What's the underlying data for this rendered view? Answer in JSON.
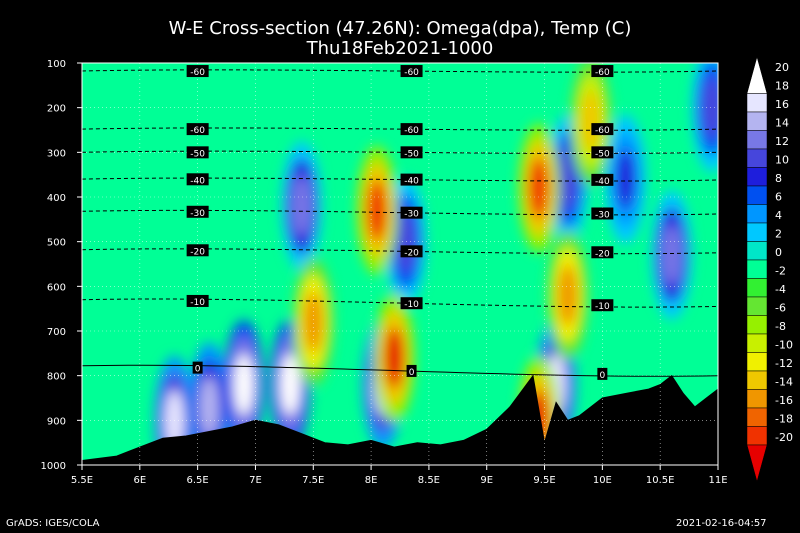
{
  "title": "W-E Cross-section (47.26N): Omega(dpa), Temp (C)",
  "subtitle": "Thu18Feb2021-1000",
  "footer_left": "GrADS: IGES/COLA",
  "footer_right": "2021-02-16-04:57",
  "chart_data": {
    "type": "heatmap",
    "x_ticks": [
      "5.5E",
      "6E",
      "6.5E",
      "7E",
      "7.5E",
      "8E",
      "8.5E",
      "9E",
      "9.5E",
      "10E",
      "10.5E",
      "11E"
    ],
    "x_values": [
      5.5,
      6.0,
      6.5,
      7.0,
      7.5,
      8.0,
      8.5,
      9.0,
      9.5,
      10.0,
      10.5,
      11.0
    ],
    "xlim": [
      5.5,
      11.0
    ],
    "y_ticks": [
      "100",
      "200",
      "300",
      "400",
      "500",
      "600",
      "700",
      "800",
      "900",
      "1000"
    ],
    "y_values": [
      100,
      200,
      300,
      400,
      500,
      600,
      700,
      800,
      900,
      1000
    ],
    "ylim": [
      100,
      1000
    ],
    "y_inverted": true,
    "grid": true,
    "colorbar": {
      "labels": [
        "20",
        "18",
        "16",
        "14",
        "12",
        "10",
        "8",
        "6",
        "4",
        "2",
        "0",
        "-2",
        "-4",
        "-6",
        "-8",
        "-10",
        "-12",
        "-14",
        "-16",
        "-18",
        "-20"
      ],
      "colors": [
        "#ffffff",
        "#e6e6ff",
        "#b4b4f0",
        "#7878e6",
        "#4646dc",
        "#1e1edc",
        "#0050f0",
        "#0096ff",
        "#00c8ff",
        "#00e6c8",
        "#00ff96",
        "#32f032",
        "#64e632",
        "#96f000",
        "#c8f000",
        "#f0f000",
        "#f0c800",
        "#f09600",
        "#f06400",
        "#f03200",
        "#e60000"
      ],
      "placement": "right"
    },
    "temperature_contours": [
      {
        "label": "-60",
        "y": [
          118,
          118
        ]
      },
      {
        "label": "-60",
        "y": [
          248,
          248
        ]
      },
      {
        "label": "-50",
        "y": [
          300,
          300
        ]
      },
      {
        "label": "-40",
        "y": [
          360,
          362
        ]
      },
      {
        "label": "-30",
        "y": [
          432,
          438
        ]
      },
      {
        "label": "-20",
        "y": [
          518,
          525
        ]
      },
      {
        "label": "-10",
        "y": [
          630,
          645
        ]
      },
      {
        "label": "0",
        "y": [
          778,
          800
        ]
      }
    ],
    "temperature_labels": [
      "-60",
      "-60",
      "-60",
      "-60",
      "-60",
      "-60",
      "-50",
      "-50",
      "-50",
      "-40",
      "-40",
      "-40",
      "-30",
      "-30",
      "-30",
      "-20",
      "-20",
      "-20",
      "-10",
      "-10",
      "-10",
      "0",
      "0",
      "0"
    ],
    "terrain": {
      "x": [
        5.5,
        5.8,
        6.0,
        6.2,
        6.4,
        6.6,
        6.8,
        7.0,
        7.2,
        7.4,
        7.6,
        7.8,
        8.0,
        8.2,
        8.4,
        8.6,
        8.8,
        9.0,
        9.2,
        9.4,
        9.5,
        9.6,
        9.7,
        9.8,
        10.0,
        10.2,
        10.4,
        10.5,
        10.6,
        10.7,
        10.8,
        10.9,
        11.0
      ],
      "pressure": [
        990,
        980,
        960,
        940,
        935,
        925,
        915,
        900,
        910,
        930,
        950,
        955,
        945,
        960,
        950,
        955,
        945,
        920,
        870,
        800,
        950,
        860,
        900,
        890,
        850,
        840,
        830,
        820,
        800,
        840,
        870,
        850,
        830
      ]
    },
    "omega_features": [
      {
        "x": 6.3,
        "p": 900,
        "v": 18
      },
      {
        "x": 6.6,
        "p": 870,
        "v": 16
      },
      {
        "x": 6.9,
        "p": 820,
        "v": 20
      },
      {
        "x": 7.3,
        "p": 820,
        "v": 20
      },
      {
        "x": 7.4,
        "p": 420,
        "v": 14
      },
      {
        "x": 8.1,
        "p": 820,
        "v": 18
      },
      {
        "x": 8.3,
        "p": 500,
        "v": 12
      },
      {
        "x": 9.6,
        "p": 820,
        "v": 18
      },
      {
        "x": 9.7,
        "p": 360,
        "v": 12
      },
      {
        "x": 10.2,
        "p": 360,
        "v": 10
      },
      {
        "x": 10.6,
        "p": 530,
        "v": 14
      },
      {
        "x": 10.95,
        "p": 200,
        "v": 12
      },
      {
        "x": 8.05,
        "p": 430,
        "v": -18
      },
      {
        "x": 8.2,
        "p": 760,
        "v": -20
      },
      {
        "x": 7.5,
        "p": 680,
        "v": -14
      },
      {
        "x": 9.45,
        "p": 900,
        "v": -20
      },
      {
        "x": 9.45,
        "p": 380,
        "v": -18
      },
      {
        "x": 9.9,
        "p": 230,
        "v": -12
      },
      {
        "x": 9.7,
        "p": 620,
        "v": -14
      }
    ]
  }
}
